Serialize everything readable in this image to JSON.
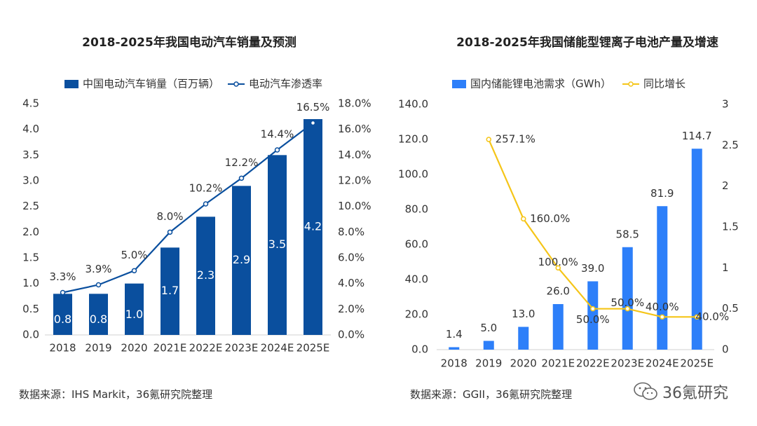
{
  "chart_data": [
    {
      "type": "bar+line",
      "title": "2018-2025年我国电动汽车销量及预测",
      "categories": [
        "2018",
        "2019",
        "2020",
        "2021E",
        "2022E",
        "2023E",
        "2024E",
        "2025E"
      ],
      "series": [
        {
          "name": "中国电动汽车销量（百万辆）",
          "type": "bar",
          "axis": "left",
          "color": "#0a4f9e",
          "values": [
            0.8,
            0.8,
            1.0,
            1.7,
            2.3,
            2.9,
            3.5,
            4.2
          ],
          "labels": [
            "0.8",
            "0.8",
            "1.0",
            "1.7",
            "2.3",
            "2.9",
            "3.5",
            "4.2"
          ]
        },
        {
          "name": "电动汽车渗透率",
          "type": "line",
          "axis": "right",
          "color": "#0a4f9e",
          "values": [
            3.3,
            3.9,
            5.0,
            8.0,
            10.2,
            12.2,
            14.4,
            16.5
          ],
          "labels": [
            "3.3%",
            "3.9%",
            "5.0%",
            "8.0%",
            "10.2%",
            "12.2%",
            "14.4%",
            "16.5%"
          ]
        }
      ],
      "left_axis": {
        "min": 0,
        "max": 4.5,
        "ticks": [
          "0.0",
          "0.5",
          "1.0",
          "1.5",
          "2.0",
          "2.5",
          "3.0",
          "3.5",
          "4.0",
          "4.5"
        ]
      },
      "right_axis": {
        "min": 0,
        "max": 18,
        "ticks": [
          "0.0%",
          "2.0%",
          "4.0%",
          "6.0%",
          "8.0%",
          "10.0%",
          "12.0%",
          "14.0%",
          "16.0%",
          "18.0%"
        ]
      },
      "legend": "top"
    },
    {
      "type": "bar+line",
      "title": "2018-2025年我国储能型锂离子电池产量及增速",
      "categories": [
        "2018",
        "2019",
        "2020",
        "2021E",
        "2022E",
        "2023E",
        "2024E",
        "2025E"
      ],
      "series": [
        {
          "name": "国内储能锂电池需求（GWh）",
          "type": "bar",
          "axis": "left",
          "color": "#2d7ff9",
          "values": [
            1.4,
            5.0,
            13.0,
            26.0,
            39.0,
            58.5,
            81.9,
            114.7
          ],
          "labels": [
            "1.4",
            "5.0",
            "13.0",
            "26.0",
            "39.0",
            "58.5",
            "81.9",
            "114.7"
          ]
        },
        {
          "name": "同比增长",
          "type": "line",
          "axis": "right",
          "color": "#f5c518",
          "values": [
            null,
            2.571,
            1.6,
            1.0,
            0.5,
            0.5,
            0.4,
            0.4
          ],
          "labels": [
            "",
            "257.1%",
            "160.0%",
            "100.0%",
            "50.0%",
            "50.0%",
            "40.0%",
            "40.0%"
          ]
        }
      ],
      "left_axis": {
        "min": 0,
        "max": 140,
        "ticks": [
          "0.0",
          "20.0",
          "40.0",
          "60.0",
          "80.0",
          "100.0",
          "120.0",
          "140.0"
        ]
      },
      "right_axis": {
        "min": 0,
        "max": 3,
        "ticks": [
          "0",
          "0.5",
          "1",
          "1.5",
          "2",
          "2.5",
          "3"
        ]
      },
      "legend": "top"
    }
  ],
  "sources": {
    "left": "数据来源：IHS Markit，36氪研究院整理",
    "right": "数据来源：GGII，36氪研究院整理"
  },
  "watermark": {
    "text": "36氪研究",
    "icon": "wechat-icon"
  }
}
